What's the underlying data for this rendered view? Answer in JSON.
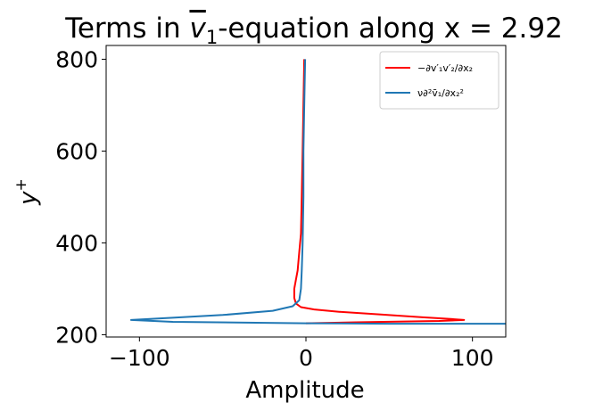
{
  "chart_data": {
    "type": "line",
    "title": "Terms in v̄₁-equation along x = 2.92",
    "xlabel": "Amplitude",
    "ylabel": "y⁺",
    "xlim": [
      -120,
      120
    ],
    "ylim": [
      195,
      830
    ],
    "xticks": [
      -100,
      0,
      100
    ],
    "xtick_labels": [
      "−100",
      "0",
      "100"
    ],
    "yticks": [
      200,
      400,
      600,
      800
    ],
    "ytick_labels": [
      "200",
      "400",
      "600",
      "800"
    ],
    "grid": false,
    "legend_position": "top-right",
    "series": [
      {
        "name": "−∂v'₁v'₂/∂x₂",
        "legend_label": "−∂v′₁v′₂/∂x₂",
        "color": "#ff0000",
        "x": [
          -1,
          -1.5,
          -2,
          -2.5,
          -3,
          -4,
          -5,
          -6,
          -7,
          -7,
          -6,
          -3,
          5,
          20,
          45,
          70,
          88,
          95,
          80,
          30,
          0
        ],
        "y": [
          800,
          700,
          600,
          500,
          420,
          380,
          340,
          320,
          300,
          280,
          268,
          260,
          255,
          250,
          244,
          238,
          234,
          232,
          230,
          227,
          225
        ]
      },
      {
        "name": "ν∂²v̄₁/∂x₂²",
        "legend_label": "ν∂²v̄₁/∂x₂²",
        "color": "#1f77b4",
        "x": [
          -0.5,
          -1,
          -1.5,
          -1.5,
          -2,
          -2.5,
          -3,
          -4,
          -8,
          -20,
          -50,
          -80,
          -105,
          -80,
          -30,
          0,
          50,
          120
        ],
        "y": [
          800,
          700,
          600,
          500,
          400,
          340,
          300,
          275,
          262,
          252,
          243,
          237,
          232,
          228,
          226,
          225,
          224,
          224
        ]
      }
    ]
  }
}
